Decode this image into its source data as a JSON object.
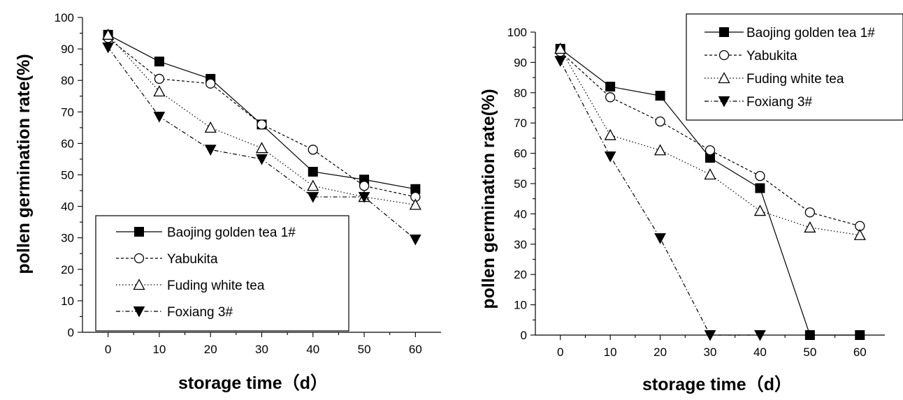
{
  "chart_data": [
    {
      "type": "line",
      "xlabel": "storage time（d）",
      "ylabel": "pollen germination rate(%)",
      "x": [
        0,
        10,
        20,
        30,
        40,
        50,
        60
      ],
      "xlim": [
        -5,
        65
      ],
      "ylim": [
        0,
        100
      ],
      "xticks": [
        "0",
        "10",
        "20",
        "30",
        "40",
        "50",
        "60"
      ],
      "yticks": [
        "0",
        "10",
        "20",
        "30",
        "40",
        "50",
        "60",
        "70",
        "80",
        "90",
        "100"
      ],
      "legend_position": "bottom-left",
      "series": [
        {
          "name": "Baojing golden tea 1#",
          "marker": "square-filled",
          "line": "solid",
          "values": [
            94.5,
            86,
            80.5,
            66,
            51,
            48.5,
            45.5
          ]
        },
        {
          "name": "Yabukita",
          "marker": "circle-open",
          "line": "dashed",
          "values": [
            93.5,
            80.5,
            79,
            66,
            58,
            46.5,
            43
          ]
        },
        {
          "name": "Fuding white tea",
          "marker": "triangle-up-open",
          "line": "dotted",
          "values": [
            94.5,
            76.5,
            65,
            58.5,
            46.5,
            43,
            40.5
          ]
        },
        {
          "name": "Foxiang 3#",
          "marker": "triangle-down-filled",
          "line": "dash-dot",
          "values": [
            90.5,
            68.5,
            58,
            55,
            43,
            43,
            29.5
          ]
        }
      ]
    },
    {
      "type": "line",
      "xlabel": "storage time（d）",
      "ylabel": "pollen germination rate(%)",
      "x": [
        0,
        10,
        20,
        30,
        40,
        50,
        60
      ],
      "xlim": [
        -5,
        65
      ],
      "ylim": [
        0,
        100
      ],
      "xticks": [
        "0",
        "10",
        "20",
        "30",
        "40",
        "50",
        "60"
      ],
      "yticks": [
        "0",
        "10",
        "20",
        "30",
        "40",
        "50",
        "60",
        "70",
        "80",
        "90",
        "100"
      ],
      "legend_position": "top-right",
      "series": [
        {
          "name": "Baojing golden tea 1#",
          "marker": "square-filled",
          "line": "solid",
          "values": [
            94.5,
            82,
            79,
            58.5,
            48.5,
            0,
            0
          ]
        },
        {
          "name": "Yabukita",
          "marker": "circle-open",
          "line": "dashed",
          "values": [
            93.5,
            78.5,
            70.5,
            61,
            52.5,
            40.5,
            36
          ]
        },
        {
          "name": "Fuding white tea",
          "marker": "triangle-up-open",
          "line": "dotted",
          "values": [
            94.5,
            66,
            61,
            53,
            41,
            35.5,
            33
          ]
        },
        {
          "name": "Foxiang 3#",
          "marker": "triangle-down-filled",
          "line": "dash-dot",
          "values": [
            90.5,
            59,
            32,
            0,
            0,
            null,
            null
          ]
        }
      ]
    }
  ]
}
